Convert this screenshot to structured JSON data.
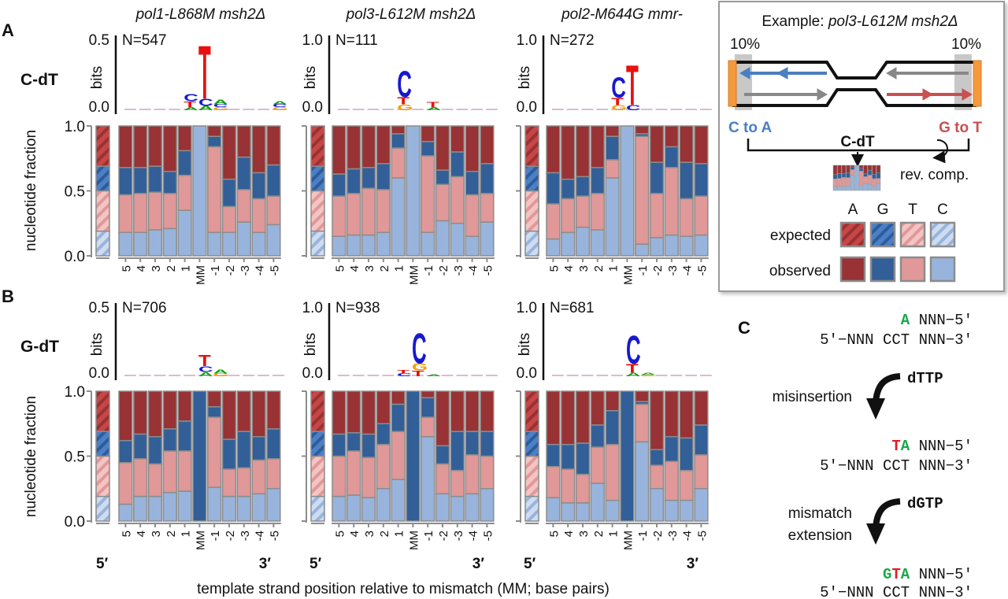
{
  "figure": {
    "panel_letters": [
      "A",
      "B",
      "C"
    ],
    "column_titles": [
      "pol1-L868M msh2Δ",
      "pol3-L612M msh2Δ",
      "pol2-M644G mmr-"
    ],
    "row_labels": [
      "C-dT",
      "G-dT"
    ],
    "bits_label": "bits",
    "ylabel": "nucleotide fraction",
    "yticks": [
      "1.0",
      "0.5",
      "0.0"
    ],
    "end_labels": [
      "5′",
      "3′"
    ],
    "xlabel": "template strand position relative to mismatch (MM; base pairs)"
  },
  "colors": {
    "A": "#983234",
    "G": "#325f98",
    "T": "#e09898",
    "C": "#98b4dc",
    "logo_A": "#10a010",
    "logo_C": "#1818d0",
    "logo_G": "#f0a000",
    "logo_T": "#e81010",
    "bar_border": "#8c8c8c"
  },
  "chart_data": [
    {
      "type": "bar",
      "stacked": true,
      "row": "C-dT",
      "title": "pol1-L868M msh2Δ",
      "N": "N=547",
      "logo_ymax": "0.5",
      "logo_ymin": "0.0",
      "categories": [
        "5",
        "4",
        "3",
        "2",
        "1",
        "MM",
        "-1",
        "-2",
        "-3",
        "-4",
        "-5"
      ],
      "series": [
        {
          "name": "C",
          "values": [
            0.18,
            0.18,
            0.2,
            0.21,
            0.35,
            1,
            0.18,
            0.18,
            0.26,
            0.18,
            0.24
          ]
        },
        {
          "name": "T",
          "values": [
            0.29,
            0.3,
            0.29,
            0.27,
            0.27,
            0,
            0.66,
            0.2,
            0.25,
            0.26,
            0.22
          ]
        },
        {
          "name": "G",
          "values": [
            0.21,
            0.2,
            0.2,
            0.17,
            0.19,
            0,
            0.08,
            0.21,
            0.25,
            0.2,
            0.24
          ]
        },
        {
          "name": "A",
          "values": [
            0.32,
            0.32,
            0.31,
            0.35,
            0.19,
            0,
            0.08,
            0.41,
            0.24,
            0.36,
            0.3
          ]
        }
      ],
      "expected": {
        "C": 0.19,
        "T": 0.31,
        "G": 0.19,
        "A": 0.31
      },
      "logo": [
        {
          "pos": "1",
          "letters": [
            [
              "A",
              0.02
            ],
            [
              "T",
              0.04
            ],
            [
              "C",
              0.05
            ]
          ]
        },
        {
          "pos": "MM",
          "letters": [
            [
              "A",
              0.03
            ],
            [
              "C",
              0.05
            ],
            [
              "T",
              0.37
            ]
          ]
        },
        {
          "pos": "-1",
          "letters": [
            [
              "G",
              0.02
            ],
            [
              "C",
              0.02
            ],
            [
              "A",
              0.03
            ]
          ]
        },
        {
          "pos": "-5",
          "letters": [
            [
              "G",
              0.02
            ],
            [
              "C",
              0.02
            ],
            [
              "A",
              0.02
            ]
          ]
        }
      ],
      "ylim": [
        0,
        1
      ]
    },
    {
      "type": "bar",
      "stacked": true,
      "row": "C-dT",
      "title": "pol3-L612M msh2Δ",
      "N": "N=111",
      "logo_ymax": "1.0",
      "logo_ymin": "0.0",
      "categories": [
        "5",
        "4",
        "3",
        "2",
        "1",
        "MM",
        "-1",
        "-2",
        "-3",
        "-4",
        "-5"
      ],
      "series": [
        {
          "name": "C",
          "values": [
            0.15,
            0.16,
            0.16,
            0.18,
            0.6,
            1,
            0.18,
            0.27,
            0.25,
            0.15,
            0.26
          ]
        },
        {
          "name": "T",
          "values": [
            0.31,
            0.32,
            0.36,
            0.33,
            0.23,
            0,
            0.59,
            0.28,
            0.36,
            0.32,
            0.22
          ]
        },
        {
          "name": "G",
          "values": [
            0.17,
            0.19,
            0.16,
            0.2,
            0.11,
            0,
            0.11,
            0.11,
            0.19,
            0.18,
            0.23
          ]
        },
        {
          "name": "A",
          "values": [
            0.37,
            0.33,
            0.32,
            0.29,
            0.06,
            0,
            0.12,
            0.34,
            0.2,
            0.35,
            0.29
          ]
        }
      ],
      "expected": {
        "C": 0.19,
        "T": 0.31,
        "G": 0.19,
        "A": 0.31
      },
      "logo": [
        {
          "pos": "1",
          "letters": [
            [
              "G",
              0.08
            ],
            [
              "T",
              0.1
            ],
            [
              "C",
              0.36
            ]
          ]
        },
        {
          "pos": "-1",
          "letters": [
            [
              "A",
              0.04
            ],
            [
              "T",
              0.07
            ]
          ]
        }
      ],
      "ylim": [
        0,
        1
      ]
    },
    {
      "type": "bar",
      "stacked": true,
      "row": "C-dT",
      "title": "pol2-M644G mmr-",
      "N": "N=272",
      "logo_ymax": "1.0",
      "logo_ymin": "0.0",
      "categories": [
        "5",
        "4",
        "3",
        "2",
        "1",
        "MM",
        "-1",
        "-2",
        "-3",
        "-4",
        "-5"
      ],
      "series": [
        {
          "name": "C",
          "values": [
            0.13,
            0.18,
            0.22,
            0.2,
            0.6,
            1,
            0.09,
            0.14,
            0.16,
            0.15,
            0.16
          ]
        },
        {
          "name": "T",
          "values": [
            0.27,
            0.26,
            0.24,
            0.28,
            0.14,
            0,
            0.83,
            0.34,
            0.52,
            0.29,
            0.3
          ]
        },
        {
          "name": "G",
          "values": [
            0.24,
            0.15,
            0.15,
            0.2,
            0.18,
            0,
            0.02,
            0.24,
            0.16,
            0.28,
            0.25
          ]
        },
        {
          "name": "A",
          "values": [
            0.36,
            0.41,
            0.39,
            0.32,
            0.08,
            0,
            0.06,
            0.28,
            0.16,
            0.28,
            0.29
          ]
        }
      ],
      "expected": {
        "C": 0.19,
        "T": 0.31,
        "G": 0.19,
        "A": 0.31
      },
      "logo": [
        {
          "pos": "1",
          "letters": [
            [
              "G",
              0.07
            ],
            [
              "T",
              0.1
            ],
            [
              "C",
              0.28
            ]
          ]
        },
        {
          "pos": "MM",
          "letters": [
            [
              "C",
              0.07
            ],
            [
              "T",
              0.55
            ]
          ]
        }
      ],
      "ylim": [
        0,
        1
      ]
    },
    {
      "type": "bar",
      "stacked": true,
      "row": "G-dT",
      "title": "pol1-L868M msh2Δ",
      "N": "N=706",
      "logo_ymax": "0.5",
      "logo_ymin": "0.0",
      "categories": [
        "5",
        "4",
        "3",
        "2",
        "1",
        "MM",
        "-1",
        "-2",
        "-3",
        "-4",
        "-5"
      ],
      "series": [
        {
          "name": "C",
          "values": [
            0.13,
            0.19,
            0.19,
            0.22,
            0.23,
            0,
            0.26,
            0.19,
            0.19,
            0.21,
            0.25
          ]
        },
        {
          "name": "T",
          "values": [
            0.32,
            0.29,
            0.25,
            0.32,
            0.31,
            0,
            0.54,
            0.21,
            0.22,
            0.26,
            0.23
          ]
        },
        {
          "name": "G",
          "values": [
            0.17,
            0.19,
            0.21,
            0.17,
            0.23,
            1,
            0.08,
            0.23,
            0.28,
            0.18,
            0.23
          ]
        },
        {
          "name": "A",
          "values": [
            0.38,
            0.33,
            0.35,
            0.29,
            0.23,
            0,
            0.12,
            0.37,
            0.31,
            0.35,
            0.29
          ]
        }
      ],
      "expected": {
        "C": 0.19,
        "T": 0.31,
        "G": 0.19,
        "A": 0.31
      },
      "logo": [
        {
          "pos": "MM",
          "letters": [
            [
              "A",
              0.03
            ],
            [
              "C",
              0.04
            ],
            [
              "T",
              0.08
            ]
          ]
        },
        {
          "pos": "-1",
          "letters": [
            [
              "G",
              0.02
            ],
            [
              "A",
              0.03
            ]
          ]
        }
      ],
      "ylim": [
        0,
        1
      ]
    },
    {
      "type": "bar",
      "stacked": true,
      "row": "G-dT",
      "title": "pol3-L612M msh2Δ",
      "N": "N=938",
      "logo_ymax": "1.0",
      "logo_ymin": "0.0",
      "categories": [
        "5",
        "4",
        "3",
        "2",
        "1",
        "MM",
        "-1",
        "-2",
        "-3",
        "-4",
        "-5"
      ],
      "series": [
        {
          "name": "C",
          "values": [
            0.19,
            0.2,
            0.18,
            0.25,
            0.32,
            0,
            0.65,
            0.21,
            0.19,
            0.21,
            0.25
          ]
        },
        {
          "name": "T",
          "values": [
            0.31,
            0.34,
            0.31,
            0.34,
            0.37,
            0,
            0.15,
            0.23,
            0.2,
            0.3,
            0.25
          ]
        },
        {
          "name": "G",
          "values": [
            0.17,
            0.14,
            0.18,
            0.16,
            0.21,
            1,
            0.15,
            0.14,
            0.3,
            0.18,
            0.19
          ]
        },
        {
          "name": "A",
          "values": [
            0.33,
            0.32,
            0.33,
            0.25,
            0.1,
            0,
            0.05,
            0.42,
            0.31,
            0.31,
            0.31
          ]
        }
      ],
      "expected": {
        "C": 0.19,
        "T": 0.31,
        "G": 0.19,
        "A": 0.31
      },
      "logo": [
        {
          "pos": "1",
          "letters": [
            [
              "C",
              0.04
            ],
            [
              "T",
              0.05
            ]
          ]
        },
        {
          "pos": "MM",
          "letters": [
            [
              "T",
              0.08
            ],
            [
              "G",
              0.1
            ],
            [
              "C",
              0.43
            ]
          ]
        },
        {
          "pos": "-1",
          "letters": [
            [
              "A",
              0.03
            ]
          ]
        }
      ],
      "ylim": [
        0,
        1
      ]
    },
    {
      "type": "bar",
      "stacked": true,
      "row": "G-dT",
      "title": "pol2-M644G mmr-",
      "N": "N=681",
      "logo_ymax": "1.0",
      "logo_ymin": "0.0",
      "categories": [
        "5",
        "4",
        "3",
        "2",
        "1",
        "MM",
        "-1",
        "-2",
        "-3",
        "-4",
        "-5"
      ],
      "series": [
        {
          "name": "C",
          "values": [
            0.18,
            0.14,
            0.14,
            0.29,
            0.16,
            0,
            0.61,
            0.25,
            0.16,
            0.16,
            0.25
          ]
        },
        {
          "name": "T",
          "values": [
            0.24,
            0.26,
            0.22,
            0.28,
            0.43,
            0,
            0.29,
            0.18,
            0.3,
            0.23,
            0.26
          ]
        },
        {
          "name": "G",
          "values": [
            0.17,
            0.19,
            0.24,
            0.17,
            0.26,
            1,
            0.02,
            0.12,
            0.19,
            0.25,
            0.23
          ]
        },
        {
          "name": "A",
          "values": [
            0.41,
            0.41,
            0.4,
            0.26,
            0.15,
            0,
            0.08,
            0.45,
            0.35,
            0.36,
            0.26
          ]
        }
      ],
      "expected": {
        "C": 0.19,
        "T": 0.31,
        "G": 0.19,
        "A": 0.31
      },
      "logo": [
        {
          "pos": "MM",
          "letters": [
            [
              "A",
              0.05
            ],
            [
              "T",
              0.12
            ],
            [
              "C",
              0.4
            ]
          ]
        },
        {
          "pos": "-1",
          "letters": [
            [
              "G",
              0.02
            ],
            [
              "A",
              0.03
            ]
          ]
        }
      ],
      "ylim": [
        0,
        1
      ]
    }
  ],
  "legend_box": {
    "title_prefix": "Example: ",
    "title_genotype": "pol3-L612M msh2Δ",
    "pct_left": "10%",
    "pct_right": "10%",
    "left_label": "C to A",
    "right_label": "G to T",
    "merge_label": "C-dT",
    "rev_comp": "rev. comp.",
    "nucleotides": [
      "A",
      "G",
      "T",
      "C"
    ],
    "expected_label": "expected",
    "observed_label": "observed",
    "blue": "#4a7fc0",
    "red": "#c85050",
    "orange": "#f59a3c"
  },
  "panel_c": {
    "steps": [
      {
        "top_colored": [
          [
            "",
            "#1aa84a"
          ],
          [
            "",
            "#e02020"
          ],
          [
            "A",
            "#1aa84a"
          ]
        ],
        "top_rest": " NNN−5′",
        "bottom": "5′−NNN CCT NNN−3′"
      },
      {
        "top_colored": [
          [
            "",
            "#1aa84a"
          ],
          [
            "T",
            "#e02020"
          ],
          [
            "A",
            "#1aa84a"
          ]
        ],
        "top_rest": " NNN−5′",
        "bottom": "5′−NNN CCT NNN−3′"
      },
      {
        "top_colored": [
          [
            "G",
            "#1aa84a"
          ],
          [
            "T",
            "#e02020"
          ],
          [
            "A",
            "#1aa84a"
          ]
        ],
        "top_rest": " NNN−5′",
        "bottom": "5′−NNN CCT NNN−3′"
      }
    ],
    "arrows": [
      {
        "nucleotide": "dTTP",
        "label_lines": [
          "misinsertion"
        ]
      },
      {
        "nucleotide": "dGTP",
        "label_lines": [
          "mismatch",
          "extension"
        ]
      }
    ]
  }
}
